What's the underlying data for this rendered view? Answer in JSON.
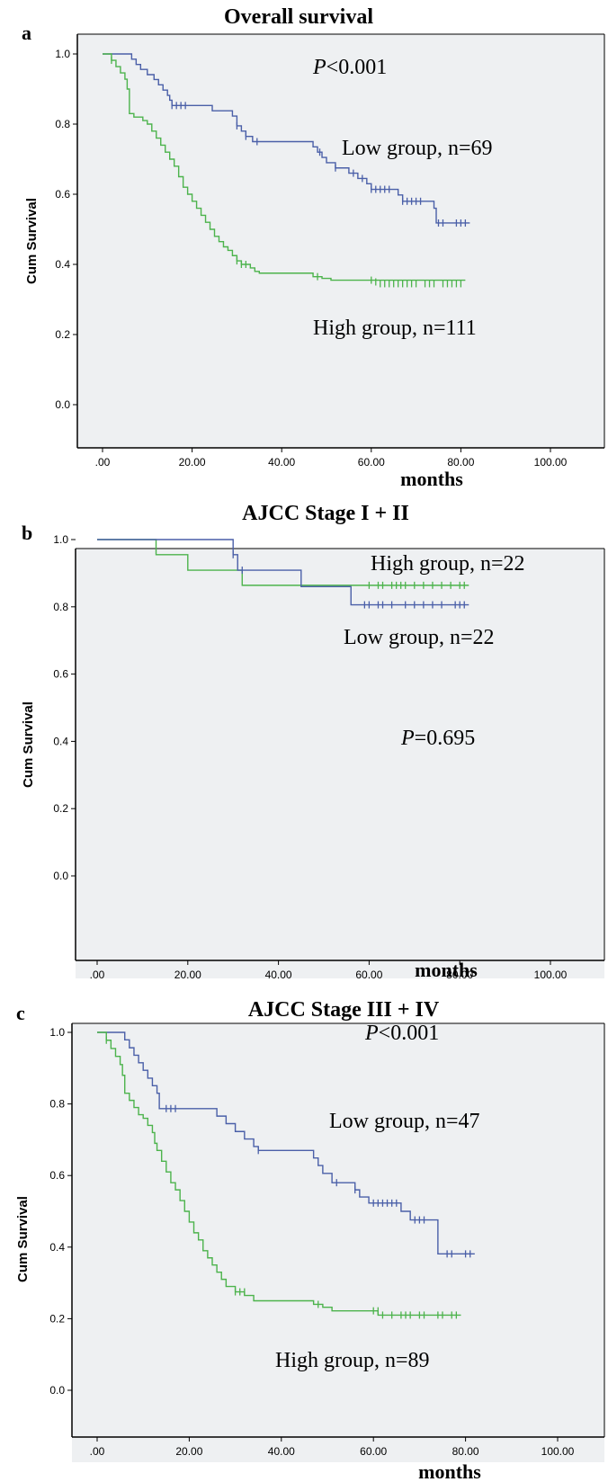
{
  "colors": {
    "low": "#4a5fa8",
    "high": "#4cb34c",
    "plot_bg": "#eef0f2",
    "frame": "#000000"
  },
  "chart_data": [
    {
      "type": "line",
      "panel_label": "a",
      "title": "Overall survival",
      "xlabel": "months",
      "ylabel": "Cum Survival",
      "xlim": [
        0,
        100
      ],
      "ylim": [
        0,
        1.0
      ],
      "x_ticks": [
        ".00",
        "20.00",
        "40.00",
        "60.00",
        "80.00",
        "100.00"
      ],
      "y_ticks": [
        "0.0",
        "0.2",
        "0.4",
        "0.6",
        "0.8",
        "1.0"
      ],
      "p_value": {
        "symbol": "P",
        "text": "<0.001"
      },
      "series": [
        {
          "name": "Low group, n=69",
          "color": "#4a5fa8",
          "steps": [
            [
              0,
              1.0
            ],
            [
              6.5,
              0.985
            ],
            [
              7.5,
              0.97
            ],
            [
              8.5,
              0.956
            ],
            [
              10,
              0.941
            ],
            [
              11.5,
              0.927
            ],
            [
              12.5,
              0.912
            ],
            [
              13.5,
              0.897
            ],
            [
              14.5,
              0.882
            ],
            [
              15,
              0.868
            ],
            [
              15.5,
              0.853
            ],
            [
              24.5,
              0.838
            ],
            [
              29,
              0.823
            ],
            [
              30,
              0.795
            ],
            [
              31,
              0.78
            ],
            [
              32,
              0.765
            ],
            [
              33.5,
              0.75
            ],
            [
              47,
              0.735
            ],
            [
              48,
              0.72
            ],
            [
              49,
              0.705
            ],
            [
              50,
              0.69
            ],
            [
              52,
              0.675
            ],
            [
              55,
              0.66
            ],
            [
              57,
              0.645
            ],
            [
              59,
              0.63
            ],
            [
              60,
              0.614
            ],
            [
              66,
              0.598
            ],
            [
              67,
              0.58
            ],
            [
              74,
              0.56
            ],
            [
              74.5,
              0.518
            ]
          ],
          "censors": [
            [
              15.5,
              0.853
            ],
            [
              16.5,
              0.853
            ],
            [
              17.5,
              0.853
            ],
            [
              18.5,
              0.853
            ],
            [
              30,
              0.795
            ],
            [
              32,
              0.765
            ],
            [
              34.5,
              0.75
            ],
            [
              48.5,
              0.72
            ],
            [
              52,
              0.675
            ],
            [
              56,
              0.66
            ],
            [
              58,
              0.645
            ],
            [
              60,
              0.614
            ],
            [
              61,
              0.614
            ],
            [
              62,
              0.614
            ],
            [
              63,
              0.614
            ],
            [
              64,
              0.614
            ],
            [
              67,
              0.58
            ],
            [
              68,
              0.58
            ],
            [
              69,
              0.58
            ],
            [
              70,
              0.58
            ],
            [
              71,
              0.58
            ],
            [
              75,
              0.518
            ],
            [
              76,
              0.518
            ],
            [
              79,
              0.518
            ],
            [
              80,
              0.518
            ],
            [
              81,
              0.518
            ]
          ],
          "end_x": 82
        },
        {
          "name": "High group, n=111",
          "color": "#4cb34c",
          "steps": [
            [
              0,
              1.0
            ],
            [
              2,
              0.982
            ],
            [
              3,
              0.964
            ],
            [
              4,
              0.946
            ],
            [
              5,
              0.928
            ],
            [
              5.5,
              0.9
            ],
            [
              6,
              0.83
            ],
            [
              7,
              0.82
            ],
            [
              9,
              0.81
            ],
            [
              10,
              0.8
            ],
            [
              11,
              0.78
            ],
            [
              12,
              0.76
            ],
            [
              13,
              0.74
            ],
            [
              14,
              0.72
            ],
            [
              15,
              0.7
            ],
            [
              16,
              0.68
            ],
            [
              17,
              0.65
            ],
            [
              18,
              0.62
            ],
            [
              19,
              0.6
            ],
            [
              20,
              0.58
            ],
            [
              21,
              0.56
            ],
            [
              22,
              0.54
            ],
            [
              23,
              0.52
            ],
            [
              24,
              0.5
            ],
            [
              25,
              0.48
            ],
            [
              26,
              0.465
            ],
            [
              27,
              0.45
            ],
            [
              28,
              0.44
            ],
            [
              29,
              0.425
            ],
            [
              30,
              0.41
            ],
            [
              31,
              0.4
            ],
            [
              33,
              0.39
            ],
            [
              34,
              0.38
            ],
            [
              35,
              0.375
            ],
            [
              47,
              0.365
            ],
            [
              49,
              0.36
            ],
            [
              51,
              0.355
            ]
          ],
          "censors": [
            [
              2,
              0.982
            ],
            [
              30,
              0.41
            ],
            [
              31,
              0.4
            ],
            [
              32,
              0.4
            ],
            [
              48,
              0.365
            ],
            [
              60,
              0.355
            ],
            [
              61,
              0.35
            ],
            [
              62,
              0.345
            ],
            [
              63,
              0.345
            ],
            [
              64,
              0.345
            ],
            [
              65,
              0.345
            ],
            [
              66,
              0.345
            ],
            [
              67,
              0.345
            ],
            [
              68,
              0.345
            ],
            [
              69,
              0.345
            ],
            [
              70,
              0.345
            ],
            [
              72,
              0.345
            ],
            [
              73,
              0.345
            ],
            [
              74,
              0.345
            ],
            [
              76,
              0.345
            ],
            [
              77,
              0.345
            ],
            [
              78,
              0.345
            ],
            [
              79,
              0.345
            ],
            [
              80,
              0.345
            ]
          ],
          "end_x": 81
        }
      ]
    },
    {
      "type": "line",
      "panel_label": "b",
      "title": "AJCC Stage I + II",
      "xlabel": "months",
      "ylabel": "Cum Survival",
      "xlim": [
        0,
        100
      ],
      "ylim": [
        0,
        1.0
      ],
      "x_ticks": [
        ".00",
        "20.00",
        "40.00",
        "60.00",
        "80.00",
        "100.00"
      ],
      "y_ticks": [
        "0.0",
        "0.2",
        "0.4",
        "0.6",
        "0.8",
        "1.0"
      ],
      "p_value": {
        "symbol": "P",
        "text": "=0.695"
      },
      "series": [
        {
          "name": "High group, n=22",
          "color": "#4cb34c",
          "steps": [
            [
              0,
              1.0
            ],
            [
              13,
              0.955
            ],
            [
              20,
              0.909
            ],
            [
              32,
              0.864
            ]
          ],
          "censors": [
            [
              60,
              0.864
            ],
            [
              62,
              0.864
            ],
            [
              63,
              0.864
            ],
            [
              65,
              0.864
            ],
            [
              66,
              0.864
            ],
            [
              67,
              0.864
            ],
            [
              68,
              0.864
            ],
            [
              70,
              0.864
            ],
            [
              72,
              0.864
            ],
            [
              74,
              0.864
            ],
            [
              76,
              0.864
            ],
            [
              78,
              0.864
            ],
            [
              80,
              0.864
            ],
            [
              81,
              0.864
            ]
          ],
          "end_x": 82
        },
        {
          "name": "Low group, n=22",
          "color": "#4a5fa8",
          "steps": [
            [
              0,
              1.0
            ],
            [
              30,
              0.955
            ],
            [
              31,
              0.909
            ],
            [
              45,
              0.86
            ],
            [
              56,
              0.806
            ]
          ],
          "censors": [
            [
              30,
              0.955
            ],
            [
              32,
              0.909
            ],
            [
              59,
              0.806
            ],
            [
              60,
              0.806
            ],
            [
              62,
              0.806
            ],
            [
              63,
              0.806
            ],
            [
              65,
              0.806
            ],
            [
              68,
              0.806
            ],
            [
              70,
              0.806
            ],
            [
              72,
              0.806
            ],
            [
              74,
              0.806
            ],
            [
              76,
              0.806
            ],
            [
              79,
              0.806
            ],
            [
              80,
              0.806
            ],
            [
              81,
              0.806
            ]
          ],
          "end_x": 82
        }
      ]
    },
    {
      "type": "line",
      "panel_label": "c",
      "title": "AJCC Stage III + IV",
      "xlabel": "months",
      "ylabel": "Cum Survival",
      "xlim": [
        0,
        100
      ],
      "ylim": [
        0,
        1.0
      ],
      "x_ticks": [
        ".00",
        "20.00",
        "40.00",
        "60.00",
        "80.00",
        "100.00"
      ],
      "y_ticks": [
        "0.0",
        "0.2",
        "0.4",
        "0.6",
        "0.8",
        "1.0"
      ],
      "p_value": {
        "symbol": "P",
        "text": "<0.001"
      },
      "series": [
        {
          "name": "Low group, n=47",
          "color": "#4a5fa8",
          "steps": [
            [
              0,
              1.0
            ],
            [
              6,
              0.979
            ],
            [
              7,
              0.957
            ],
            [
              8,
              0.936
            ],
            [
              9,
              0.915
            ],
            [
              10,
              0.894
            ],
            [
              11,
              0.872
            ],
            [
              12,
              0.851
            ],
            [
              13,
              0.83
            ],
            [
              13.5,
              0.787
            ],
            [
              26,
              0.766
            ],
            [
              28,
              0.745
            ],
            [
              30,
              0.723
            ],
            [
              32,
              0.702
            ],
            [
              34,
              0.681
            ],
            [
              35,
              0.67
            ],
            [
              47,
              0.649
            ],
            [
              48,
              0.628
            ],
            [
              49,
              0.606
            ],
            [
              51,
              0.58
            ],
            [
              56,
              0.56
            ],
            [
              57,
              0.54
            ],
            [
              59,
              0.523
            ],
            [
              66,
              0.5
            ],
            [
              68,
              0.476
            ],
            [
              74,
              0.381
            ]
          ],
          "censors": [
            [
              15,
              0.787
            ],
            [
              16,
              0.787
            ],
            [
              17,
              0.787
            ],
            [
              35,
              0.67
            ],
            [
              52,
              0.58
            ],
            [
              56,
              0.56
            ],
            [
              60,
              0.523
            ],
            [
              61,
              0.523
            ],
            [
              62,
              0.523
            ],
            [
              63,
              0.523
            ],
            [
              64,
              0.523
            ],
            [
              65,
              0.523
            ],
            [
              69,
              0.476
            ],
            [
              70,
              0.476
            ],
            [
              71,
              0.476
            ],
            [
              76,
              0.381
            ],
            [
              77,
              0.381
            ],
            [
              80,
              0.381
            ],
            [
              81,
              0.381
            ]
          ],
          "end_x": 82
        },
        {
          "name": "High group, n=89",
          "color": "#4cb34c",
          "steps": [
            [
              0,
              1.0
            ],
            [
              2,
              0.978
            ],
            [
              3,
              0.955
            ],
            [
              4,
              0.933
            ],
            [
              5,
              0.91
            ],
            [
              5.5,
              0.88
            ],
            [
              6,
              0.83
            ],
            [
              7,
              0.81
            ],
            [
              8,
              0.79
            ],
            [
              9,
              0.77
            ],
            [
              10,
              0.76
            ],
            [
              11,
              0.74
            ],
            [
              12,
              0.72
            ],
            [
              12.5,
              0.69
            ],
            [
              13,
              0.67
            ],
            [
              14,
              0.64
            ],
            [
              15,
              0.61
            ],
            [
              16,
              0.58
            ],
            [
              17,
              0.56
            ],
            [
              18,
              0.53
            ],
            [
              19,
              0.5
            ],
            [
              20,
              0.47
            ],
            [
              21,
              0.44
            ],
            [
              22,
              0.42
            ],
            [
              23,
              0.39
            ],
            [
              24,
              0.37
            ],
            [
              25,
              0.35
            ],
            [
              26,
              0.33
            ],
            [
              27,
              0.31
            ],
            [
              28,
              0.29
            ],
            [
              30,
              0.275
            ],
            [
              32,
              0.265
            ],
            [
              34,
              0.25
            ],
            [
              47,
              0.24
            ],
            [
              49,
              0.232
            ],
            [
              51,
              0.222
            ],
            [
              61,
              0.21
            ]
          ],
          "censors": [
            [
              2,
              0.978
            ],
            [
              30,
              0.275
            ],
            [
              31,
              0.275
            ],
            [
              32,
              0.275
            ],
            [
              48,
              0.24
            ],
            [
              60,
              0.222
            ],
            [
              61,
              0.222
            ],
            [
              62,
              0.21
            ],
            [
              64,
              0.21
            ],
            [
              66,
              0.21
            ],
            [
              67,
              0.21
            ],
            [
              68,
              0.21
            ],
            [
              70,
              0.21
            ],
            [
              71,
              0.21
            ],
            [
              74,
              0.21
            ],
            [
              75,
              0.21
            ],
            [
              77,
              0.21
            ],
            [
              78,
              0.21
            ]
          ],
          "end_x": 79
        }
      ]
    }
  ]
}
